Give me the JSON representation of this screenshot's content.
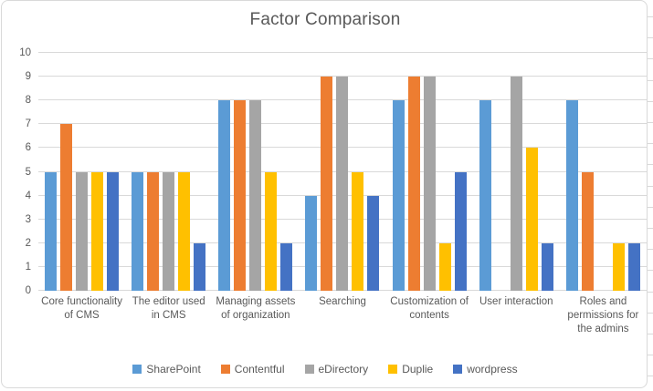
{
  "title": "Factor Comparison",
  "chart_data": {
    "type": "bar",
    "title": "Factor Comparison",
    "categories": [
      "Core functionality of CMS",
      "The editor used in CMS",
      "Managing assets of organization",
      "Searching",
      "Customization of contents",
      "User interaction",
      "Roles and permissions for the admins"
    ],
    "series": [
      {
        "name": "SharePoint",
        "color": "#5B9BD5",
        "values": [
          5,
          5,
          8,
          4,
          8,
          8,
          8
        ]
      },
      {
        "name": "Contentful",
        "color": "#ED7D31",
        "values": [
          7,
          5,
          8,
          9,
          9,
          0,
          5
        ]
      },
      {
        "name": "eDirectory",
        "color": "#A5A5A5",
        "values": [
          5,
          5,
          8,
          9,
          9,
          9,
          0
        ]
      },
      {
        "name": "Duplie",
        "color": "#FFC000",
        "values": [
          5,
          5,
          5,
          5,
          2,
          6,
          2
        ]
      },
      {
        "name": "wordpress",
        "color": "#4472C4",
        "values": [
          5,
          2,
          2,
          4,
          5,
          2,
          2
        ]
      }
    ],
    "xlabel": "",
    "ylabel": "",
    "ylim": [
      0,
      10
    ],
    "yticks": [
      0,
      1,
      2,
      3,
      4,
      5,
      6,
      7,
      8,
      9,
      10
    ],
    "grid": true,
    "legend_position": "bottom"
  },
  "styles": {
    "text_color": "#595959",
    "gridline_color": "#D9D9D9",
    "border_color": "#D9D9D9",
    "background": "#FFFFFF"
  }
}
